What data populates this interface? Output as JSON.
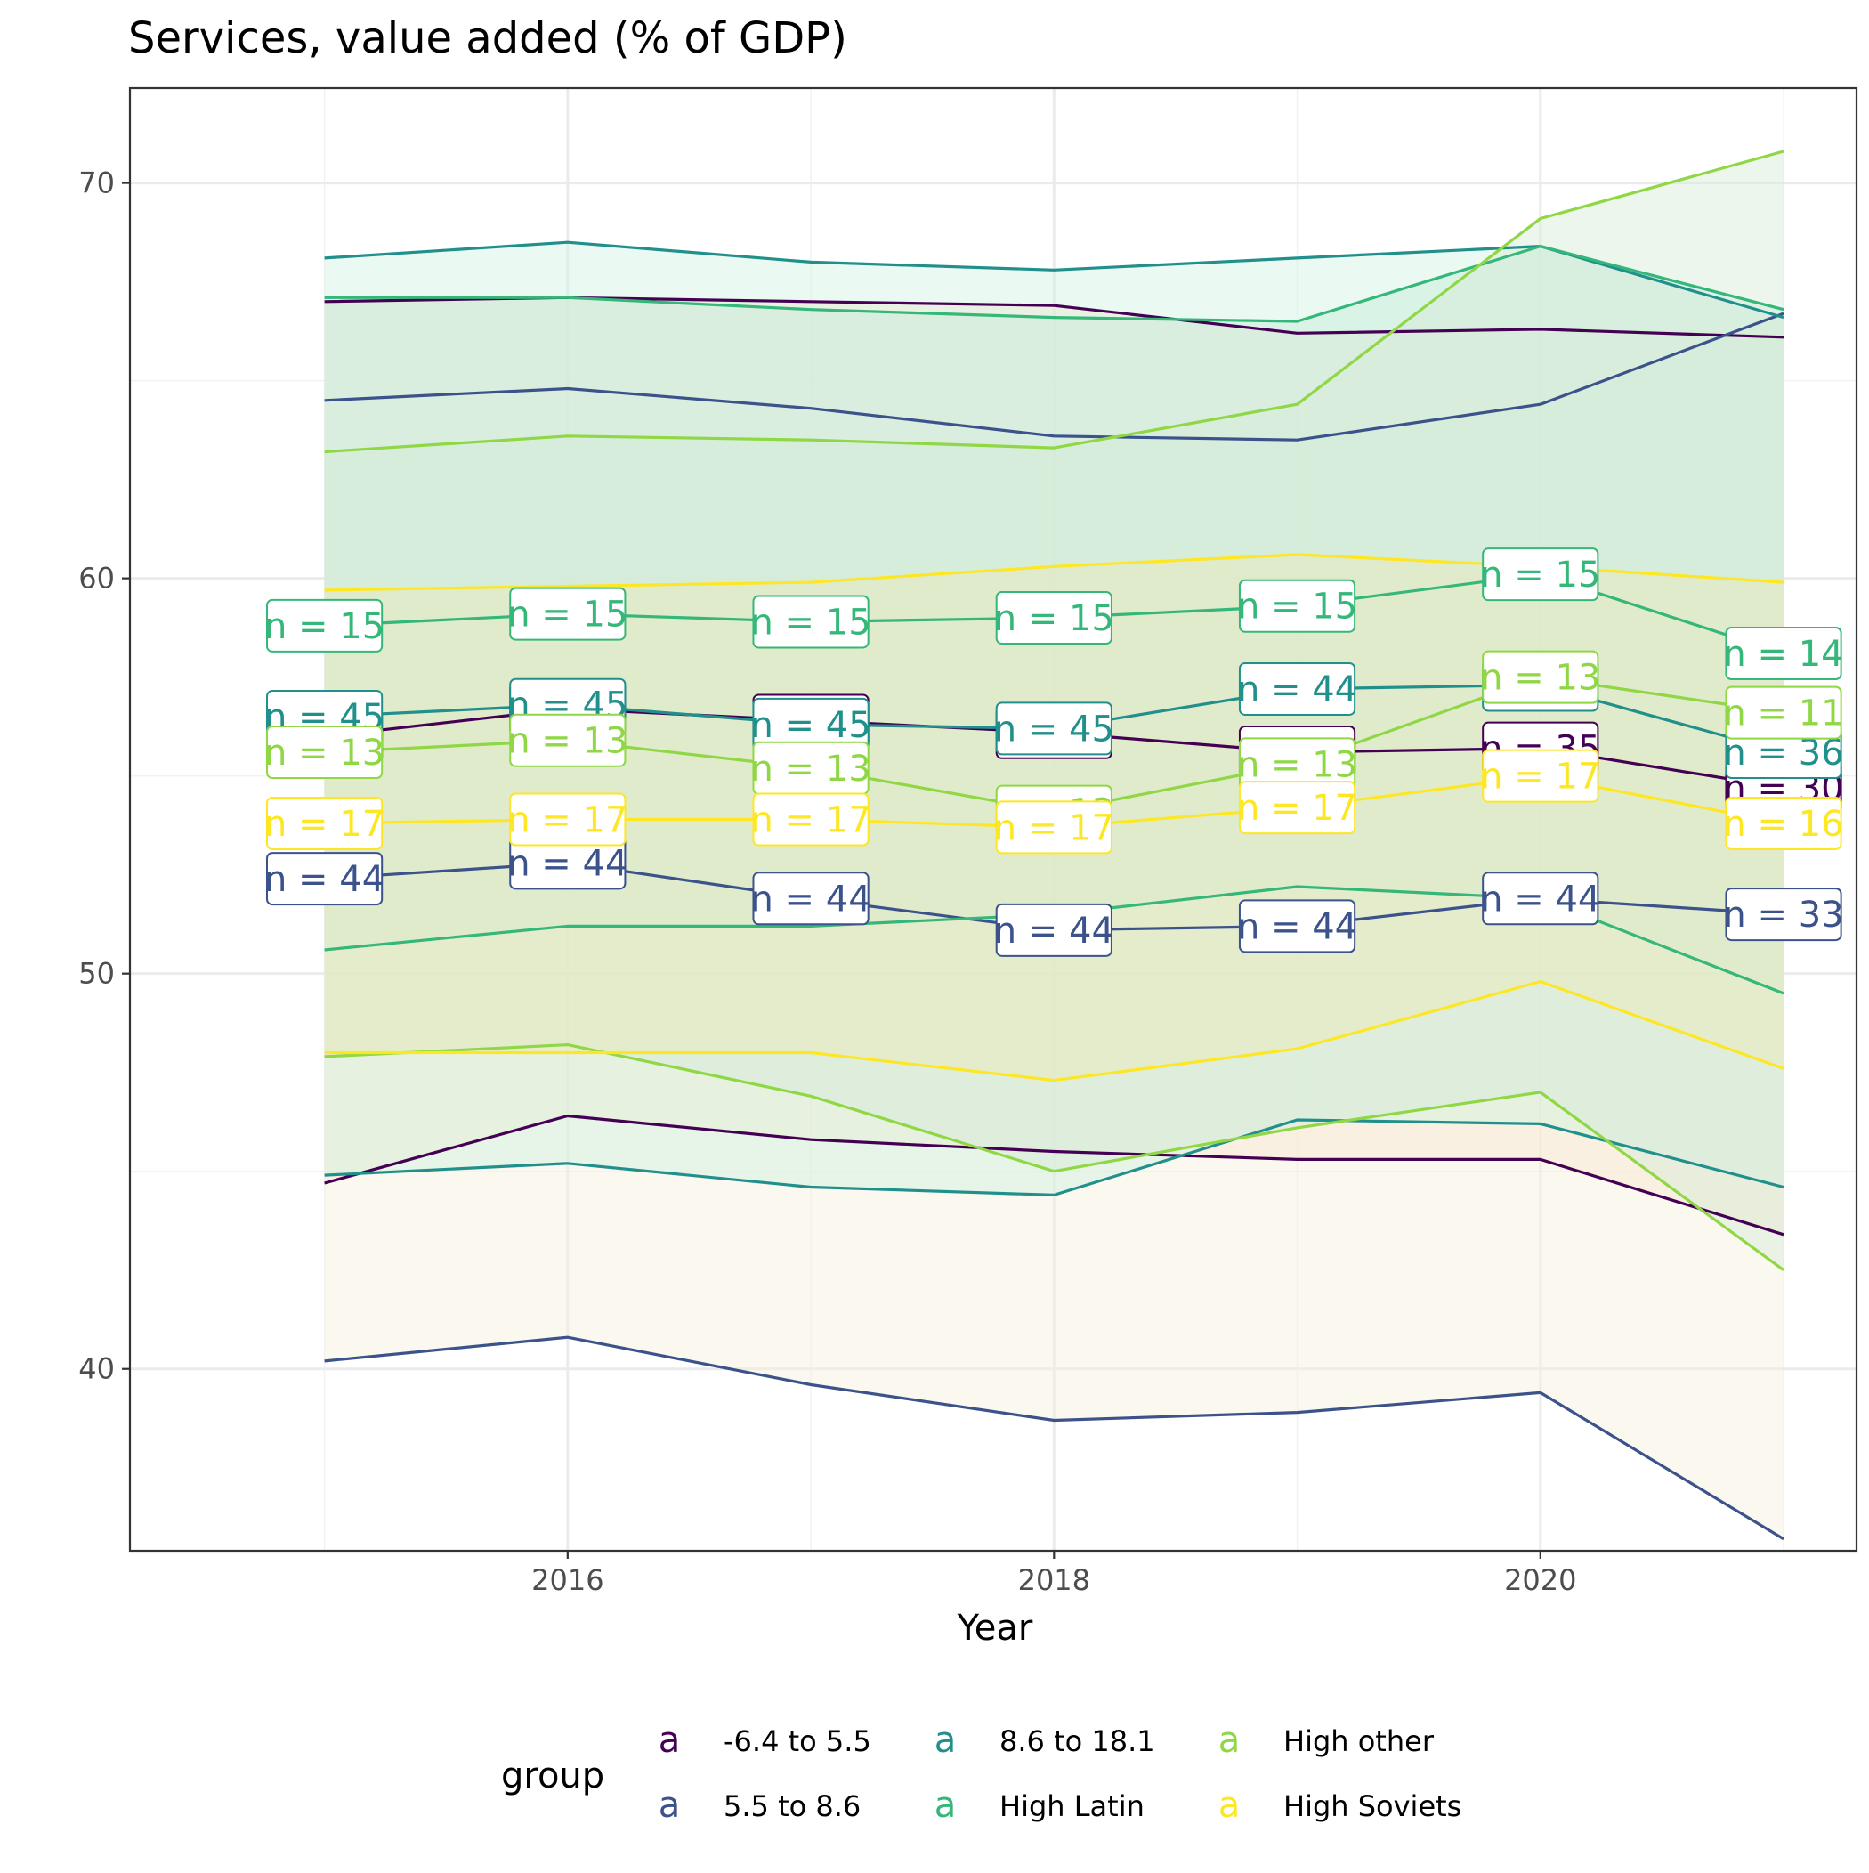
{
  "chart_data": {
    "type": "line",
    "title": "Services, value added (% of GDP)",
    "xlabel": "Year",
    "ylabel": "",
    "x": [
      2015,
      2016,
      2017,
      2018,
      2019,
      2020,
      2021
    ],
    "xlim": [
      2014.2,
      2021.3
    ],
    "ylim": [
      35.4,
      72.4
    ],
    "xticks": [
      2016,
      2018,
      2020
    ],
    "yticks": [
      40,
      50,
      60,
      70
    ],
    "grid": true,
    "legend": {
      "title": "group",
      "position": "bottom",
      "key_glyph": "a"
    },
    "series": [
      {
        "name": "-6.4 to 5.5",
        "color": "#440154",
        "fill": "#fde0c5",
        "upper": [
          67.0,
          67.1,
          67.0,
          66.9,
          66.2,
          66.3,
          66.1
        ],
        "median": [
          56.0,
          56.7,
          56.4,
          56.1,
          55.6,
          55.7,
          54.7
        ],
        "lower": [
          44.7,
          46.4,
          45.8,
          45.5,
          45.3,
          45.3,
          43.4
        ],
        "labels": [
          "n = 45",
          "n = 45",
          "n = 45",
          "n = 37",
          "n = 37",
          "n = 35",
          "n = 30"
        ]
      },
      {
        "name": "5.5 to 8.6",
        "color": "#3b528b",
        "fill": "#f5f0dc",
        "upper": [
          64.5,
          64.8,
          64.3,
          63.6,
          63.5,
          64.4,
          66.7
        ],
        "median": [
          52.4,
          52.8,
          51.9,
          51.1,
          51.2,
          51.9,
          51.5
        ],
        "lower": [
          40.2,
          40.8,
          39.6,
          38.7,
          38.9,
          39.4,
          35.7
        ],
        "labels": [
          "n = 44",
          "n = 44",
          "n = 44",
          "n = 44",
          "n = 44",
          "n = 44",
          "n = 33"
        ]
      },
      {
        "name": "8.6 to 18.1",
        "color": "#21908c",
        "fill": "#d0f2e0",
        "upper": [
          68.1,
          68.5,
          68.0,
          67.8,
          68.1,
          68.4,
          66.6
        ],
        "median": [
          56.5,
          56.8,
          56.3,
          56.2,
          57.2,
          57.3,
          55.6
        ],
        "lower": [
          44.9,
          45.2,
          44.6,
          44.4,
          46.3,
          46.2,
          44.6
        ],
        "labels": [
          "n = 45",
          "n = 45",
          "n = 45",
          "n = 45",
          "n = 44",
          "n = 43",
          "n = 36"
        ]
      },
      {
        "name": "High Latin",
        "color": "#35b779",
        "fill": "#c7eadc",
        "upper": [
          67.1,
          67.1,
          66.8,
          66.6,
          66.5,
          68.4,
          66.8
        ],
        "median": [
          58.8,
          59.1,
          58.9,
          59.0,
          59.3,
          60.1,
          58.1
        ],
        "lower": [
          50.6,
          51.2,
          51.2,
          51.5,
          52.2,
          51.9,
          49.5
        ],
        "labels": [
          "n = 15",
          "n = 15",
          "n = 15",
          "n = 15",
          "n = 15",
          "n = 15",
          "n = 14"
        ]
      },
      {
        "name": "High other",
        "color": "#8fd744",
        "fill": "#d5ecd8",
        "upper": [
          63.2,
          63.6,
          63.5,
          63.3,
          64.4,
          69.1,
          70.8
        ],
        "median": [
          55.6,
          55.9,
          55.2,
          54.1,
          55.3,
          57.5,
          56.6
        ],
        "lower": [
          47.9,
          48.2,
          46.9,
          45.0,
          46.1,
          47.0,
          42.5
        ],
        "labels": [
          "n = 13",
          "n = 13",
          "n = 13",
          "n = 13",
          "n = 13",
          "n = 13",
          "n = 11"
        ]
      },
      {
        "name": "High Soviets",
        "color": "#fde725",
        "fill": "#ece8b8",
        "upper": [
          59.7,
          59.8,
          59.9,
          60.3,
          60.6,
          60.3,
          59.9
        ],
        "median": [
          53.8,
          53.9,
          53.9,
          53.7,
          54.2,
          55.0,
          53.8
        ],
        "lower": [
          48.0,
          48.0,
          48.0,
          47.3,
          48.1,
          49.8,
          47.6
        ],
        "labels": [
          "n = 17",
          "n = 17",
          "n = 17",
          "n = 17",
          "n = 17",
          "n = 17",
          "n = 16"
        ]
      }
    ]
  }
}
